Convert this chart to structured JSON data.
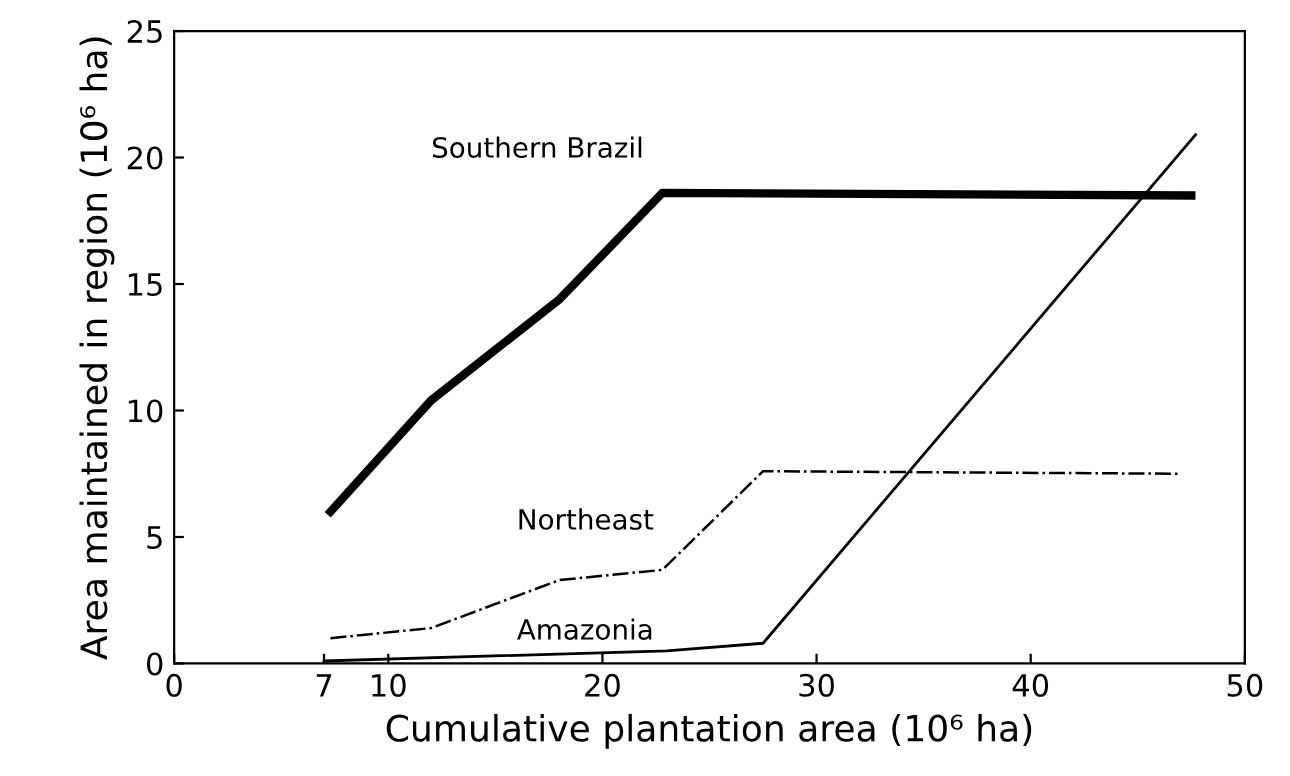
{
  "chart_data": {
    "type": "line",
    "xlabel": "Cumulative plantation area (10⁶ ha)",
    "ylabel": "Area maintained in region (10⁶ ha)",
    "xlim": [
      0,
      50
    ],
    "ylim": [
      0,
      25
    ],
    "xticks": [
      0,
      7,
      10,
      20,
      30,
      40,
      50
    ],
    "yticks": [
      0,
      5,
      10,
      15,
      20,
      25
    ],
    "grid": false,
    "legend": false,
    "marker": "none",
    "series": [
      {
        "name": "Southern Brazil",
        "color": "#000000",
        "line_style": "solid",
        "x": [
          7.3,
          12,
          18,
          22.8,
          47.5
        ],
        "values": [
          6.0,
          10.4,
          14.4,
          18.6,
          18.5
        ]
      },
      {
        "name": "Northeast",
        "color": "#000000",
        "line_style": "dashdot",
        "x": [
          7.3,
          12,
          18,
          22.8,
          27.5,
          47
        ],
        "values": [
          1.0,
          1.4,
          3.3,
          3.7,
          7.6,
          7.5
        ]
      },
      {
        "name": "Amazonia",
        "color": "#000000",
        "line_style": "solid",
        "x": [
          7,
          23,
          27.5,
          47.7
        ],
        "values": [
          0.1,
          0.5,
          0.8,
          20.9
        ]
      }
    ]
  }
}
